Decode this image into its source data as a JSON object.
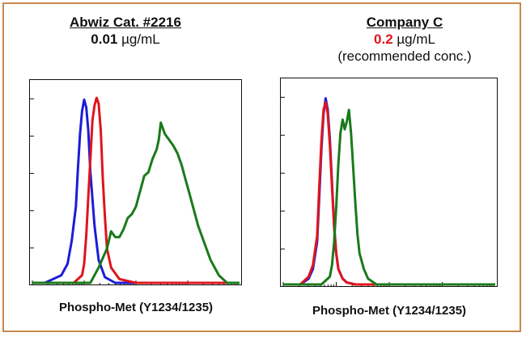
{
  "colors": {
    "border": "#c8884a",
    "blue": "#1c1cd6",
    "red": "#e0141c",
    "green": "#1a7a1a"
  },
  "panels": [
    {
      "title": "Abwiz Cat. #2216",
      "conc_value": "0.01",
      "conc_unit": "µg/mL",
      "note": "",
      "xlabel": "Phospho-Met (Y1234/1235)"
    },
    {
      "title": "Company C",
      "conc_value": "0.2",
      "conc_unit": "µg/mL",
      "note": "(recommended conc.)",
      "xlabel": "Phospho-Met (Y1234/1235)"
    }
  ],
  "chart_data": [
    {
      "type": "line",
      "title": "Abwiz Cat. #2216",
      "xlabel": "Phospho-Met (Y1234/1235)",
      "xlim": [
        0,
        100
      ],
      "ylim": [
        0,
        100
      ],
      "series": [
        {
          "color": "#1c1cd6",
          "x": [
            0,
            6,
            10,
            14,
            17,
            19,
            21,
            22,
            23,
            24,
            25,
            26,
            27,
            28,
            30,
            32,
            35,
            40,
            100
          ],
          "y": [
            0,
            0,
            2,
            4,
            10,
            22,
            40,
            60,
            78,
            90,
            96,
            92,
            80,
            58,
            30,
            12,
            3,
            0,
            0
          ]
        },
        {
          "color": "#e0141c",
          "x": [
            0,
            20,
            24,
            25,
            26,
            27,
            28,
            29,
            30,
            31,
            32,
            33,
            34,
            35,
            36,
            38,
            42,
            50,
            100
          ],
          "y": [
            0,
            0,
            4,
            10,
            25,
            45,
            65,
            85,
            93,
            97,
            94,
            80,
            55,
            35,
            18,
            8,
            2,
            0,
            0
          ]
        },
        {
          "color": "#1a7a1a",
          "x": [
            0,
            28,
            32,
            36,
            38,
            40,
            42,
            44,
            46,
            48,
            50,
            52,
            54,
            56,
            58,
            60,
            61,
            62,
            64,
            66,
            68,
            70,
            72,
            74,
            76,
            78,
            80,
            82,
            84,
            86,
            88,
            90,
            92,
            94,
            96,
            98,
            100
          ],
          "y": [
            0,
            0,
            8,
            18,
            27,
            24,
            24,
            28,
            34,
            36,
            40,
            48,
            56,
            58,
            65,
            70,
            75,
            84,
            78,
            75,
            72,
            68,
            62,
            54,
            46,
            38,
            30,
            24,
            18,
            12,
            8,
            4,
            2,
            0,
            0,
            0,
            0
          ]
        }
      ]
    },
    {
      "type": "line",
      "title": "Company C",
      "xlabel": "Phospho-Met (Y1234/1235)",
      "xlim": [
        0,
        100
      ],
      "ylim": [
        0,
        100
      ],
      "series": [
        {
          "color": "#1c1cd6",
          "x": [
            0,
            8,
            12,
            14,
            16,
            17,
            18,
            19,
            20,
            21,
            22,
            23,
            24,
            25,
            26,
            28,
            30,
            34,
            100
          ],
          "y": [
            0,
            0,
            3,
            8,
            22,
            45,
            70,
            88,
            96,
            90,
            75,
            52,
            30,
            16,
            8,
            3,
            1,
            0,
            0
          ]
        },
        {
          "color": "#e0141c",
          "x": [
            0,
            8,
            12,
            14,
            16,
            17,
            18,
            19,
            20,
            21,
            22,
            23,
            24,
            25,
            26,
            28,
            30,
            34,
            100
          ],
          "y": [
            0,
            0,
            4,
            10,
            25,
            50,
            74,
            90,
            94,
            88,
            72,
            50,
            30,
            16,
            8,
            3,
            1,
            0,
            0
          ]
        },
        {
          "color": "#1a7a1a",
          "x": [
            0,
            18,
            22,
            23,
            24,
            25,
            26,
            27,
            28,
            29,
            30,
            31,
            32,
            33,
            34,
            35,
            36,
            38,
            40,
            44,
            100
          ],
          "y": [
            0,
            0,
            4,
            10,
            22,
            40,
            62,
            78,
            85,
            80,
            84,
            90,
            78,
            60,
            42,
            26,
            16,
            8,
            3,
            0,
            0
          ]
        }
      ]
    }
  ]
}
